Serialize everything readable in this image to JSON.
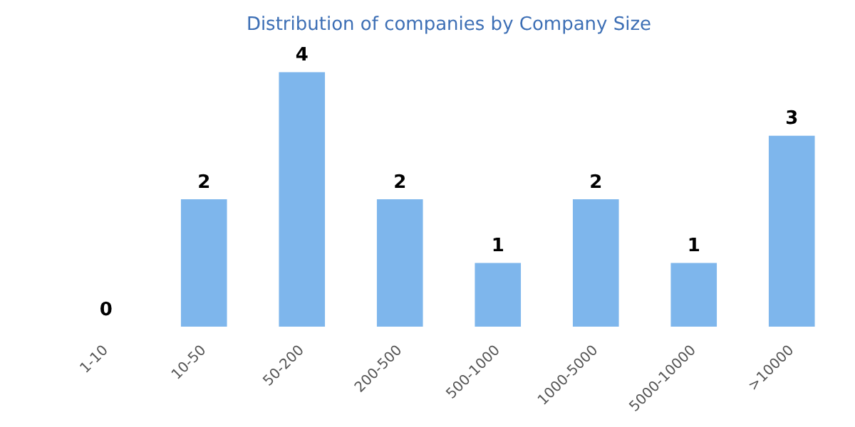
{
  "chart_data": {
    "type": "bar",
    "title": "Distribution of companies by Company Size",
    "categories": [
      "1-10",
      "10-50",
      "50-200",
      "200-500",
      "500-1000",
      "1000-5000",
      "5000-10000",
      ">10000"
    ],
    "values": [
      0,
      2,
      4,
      2,
      1,
      2,
      1,
      3
    ],
    "color": "#7eb6ec",
    "data_labels": true,
    "tick_labels": "x"
  }
}
